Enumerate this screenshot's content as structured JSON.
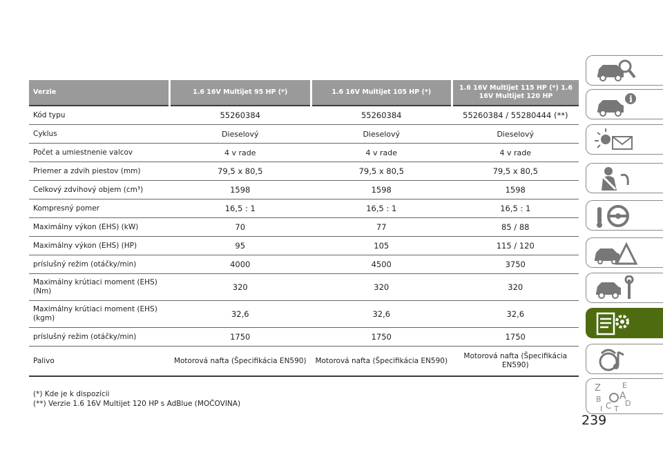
{
  "table": {
    "headers": [
      "Verzie",
      "1.6 16V Multijet 95 HP (*)",
      "1.6 16V Multijet 105 HP (*)",
      "1.6 16V Multijet 115 HP (*) 1.6 16V Multijet 120 HP"
    ],
    "rows": [
      {
        "label": "Kód typu",
        "values": [
          "55260384",
          "55260384",
          "55260384 / 55280444 (**)"
        ]
      },
      {
        "label": "Cyklus",
        "values": [
          "Dieselový",
          "Dieselový",
          "Dieselový"
        ]
      },
      {
        "label": "Počet a umiestnenie valcov",
        "values": [
          "4 v rade",
          "4 v rade",
          "4 v rade"
        ]
      },
      {
        "label": "Priemer a zdvih piestov (mm)",
        "values": [
          "79,5 x 80,5",
          "79,5 x 80,5",
          "79,5 x 80,5"
        ]
      },
      {
        "label": "Celkový zdvihový objem (cm³)",
        "values": [
          "1598",
          "1598",
          "1598"
        ]
      },
      {
        "label": "Kompresný pomer",
        "values": [
          "16,5 : 1",
          "16,5 : 1",
          "16,5 : 1"
        ]
      },
      {
        "label": "Maximálny výkon (EHS) (kW)",
        "values": [
          "70",
          "77",
          "85 / 88"
        ]
      },
      {
        "label": "Maximálny výkon (EHS) (HP)",
        "values": [
          "95",
          "105",
          "115 / 120"
        ]
      },
      {
        "label": "príslušný režim (otáčky/min)",
        "values": [
          "4000",
          "4500",
          "3750"
        ]
      },
      {
        "label": "Maximálny krútiaci moment (EHS) (Nm)",
        "values": [
          "320",
          "320",
          "320"
        ]
      },
      {
        "label": "Maximálny krútiaci moment (EHS) (kgm)",
        "values": [
          "32,6",
          "32,6",
          "32,6"
        ]
      },
      {
        "label": "príslušný režim (otáčky/min)",
        "values": [
          "1750",
          "1750",
          "1750"
        ]
      },
      {
        "label": "Palivo",
        "values": [
          "Motorová nafta (Špecifikácia EN590)",
          "Motorová nafta (Špecifikácia EN590)",
          "Motorová nafta (Špecifikácia EN590)"
        ]
      }
    ]
  },
  "footnotes": [
    "(*) Kde je k dispozícii",
    "(**) Verzie 1.6 16V Multijet 120 HP s AdBlue (MOČOVINA)"
  ],
  "page_number": "239",
  "sidebar": {
    "tabs": [
      {
        "icon": "car-search-icon"
      },
      {
        "icon": "car-info-icon"
      },
      {
        "icon": "warning-light-message-icon"
      },
      {
        "icon": "seatbelt-airbag-icon"
      },
      {
        "icon": "steering-wheel-key-icon"
      },
      {
        "icon": "car-breakdown-warning-icon"
      },
      {
        "icon": "car-maintenance-wrench-icon"
      },
      {
        "icon": "technical-data-gear-icon",
        "active": true
      },
      {
        "icon": "multimedia-icon"
      },
      {
        "icon": "alphabetical-index-icon",
        "letters": [
          "Z",
          "E",
          "B",
          "A",
          "C",
          "D",
          "T",
          "I"
        ]
      }
    ],
    "active_color": "#4f6b10"
  }
}
